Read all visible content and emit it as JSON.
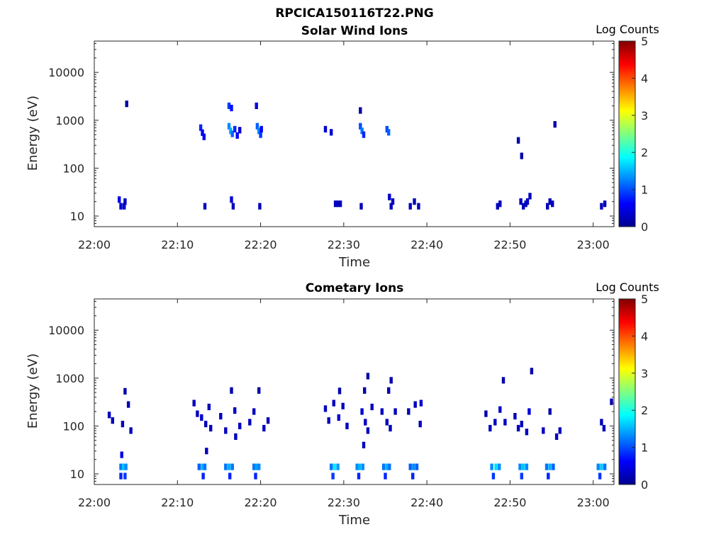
{
  "figure_title": "RPCICA150116T22.PNG",
  "colorbar": {
    "title": "Log Counts",
    "range": [
      0,
      5
    ],
    "ticks": [
      "0",
      "1",
      "2",
      "3",
      "4",
      "5"
    ]
  },
  "chart_data": [
    {
      "type": "heatmap",
      "title": "Solar Wind Ions",
      "xlabel": "Time",
      "ylabel": "Energy (eV)",
      "x_ticks": [
        "22:00",
        "22:10",
        "22:20",
        "22:30",
        "22:40",
        "22:50",
        "23:00"
      ],
      "x_tick_minutes": [
        0,
        10,
        20,
        30,
        40,
        50,
        60
      ],
      "xlim_minutes": [
        0,
        62.5
      ],
      "y_scale": "log",
      "ylim": [
        6,
        45000
      ],
      "y_ticks": [
        "10",
        "100",
        "1000",
        "10000"
      ],
      "y_tick_values": [
        10,
        100,
        1000,
        10000
      ],
      "cells": [
        [
          3.0,
          22,
          0.5
        ],
        [
          3.2,
          16,
          0.4
        ],
        [
          3.6,
          16,
          0.4
        ],
        [
          3.7,
          20,
          0.3
        ],
        [
          3.9,
          2200,
          0.2
        ],
        [
          12.8,
          700,
          0.8
        ],
        [
          13.0,
          550,
          0.6
        ],
        [
          13.2,
          450,
          0.5
        ],
        [
          13.3,
          16,
          0.3
        ],
        [
          16.2,
          2000,
          0.9
        ],
        [
          16.5,
          1800,
          0.7
        ],
        [
          16.2,
          750,
          1.3
        ],
        [
          16.4,
          600,
          1.5
        ],
        [
          16.6,
          520,
          1.1
        ],
        [
          16.9,
          650,
          0.8
        ],
        [
          17.2,
          480,
          0.6
        ],
        [
          17.5,
          620,
          0.4
        ],
        [
          16.5,
          22,
          0.4
        ],
        [
          16.7,
          16,
          0.3
        ],
        [
          19.5,
          2000,
          0.5
        ],
        [
          19.6,
          750,
          1.1
        ],
        [
          19.8,
          600,
          1.3
        ],
        [
          20.0,
          500,
          0.9
        ],
        [
          20.1,
          650,
          0.6
        ],
        [
          19.9,
          16,
          0.3
        ],
        [
          27.8,
          650,
          0.4
        ],
        [
          28.5,
          560,
          0.4
        ],
        [
          29.0,
          18,
          0.3
        ],
        [
          29.3,
          18,
          0.3
        ],
        [
          29.6,
          18,
          0.3
        ],
        [
          32.0,
          1600,
          0.2
        ],
        [
          32.0,
          750,
          1.0
        ],
        [
          32.2,
          600,
          1.2
        ],
        [
          32.4,
          500,
          0.8
        ],
        [
          32.1,
          16,
          0.3
        ],
        [
          35.2,
          650,
          1.0
        ],
        [
          35.4,
          560,
          1.1
        ],
        [
          35.5,
          25,
          0.4
        ],
        [
          35.7,
          16,
          0.3
        ],
        [
          35.9,
          20,
          0.3
        ],
        [
          38.0,
          16,
          0.3
        ],
        [
          38.5,
          20,
          0.3
        ],
        [
          39.0,
          16,
          0.3
        ],
        [
          48.5,
          16,
          0.3
        ],
        [
          48.8,
          18,
          0.3
        ],
        [
          51.0,
          380,
          0.2
        ],
        [
          51.4,
          180,
          0.2
        ],
        [
          51.3,
          20,
          0.3
        ],
        [
          51.6,
          16,
          0.3
        ],
        [
          51.9,
          18,
          0.3
        ],
        [
          52.1,
          20,
          0.3
        ],
        [
          52.4,
          26,
          0.3
        ],
        [
          54.5,
          16,
          0.3
        ],
        [
          54.8,
          20,
          0.3
        ],
        [
          55.1,
          18,
          0.3
        ],
        [
          55.4,
          820,
          0.2
        ],
        [
          61.0,
          16,
          0.3
        ],
        [
          61.4,
          18,
          0.3
        ]
      ]
    },
    {
      "type": "heatmap",
      "title": "Cometary Ions",
      "xlabel": "Time",
      "ylabel": "Energy (eV)",
      "x_ticks": [
        "22:00",
        "22:10",
        "22:20",
        "22:30",
        "22:40",
        "22:50",
        "23:00"
      ],
      "x_tick_minutes": [
        0,
        10,
        20,
        30,
        40,
        50,
        60
      ],
      "xlim_minutes": [
        0,
        62.5
      ],
      "y_scale": "log",
      "ylim": [
        6,
        45000
      ],
      "y_ticks": [
        "10",
        "100",
        "1000",
        "10000"
      ],
      "y_tick_values": [
        10,
        100,
        1000,
        10000
      ],
      "cells": [
        [
          3.2,
          14,
          1.2
        ],
        [
          3.5,
          14,
          1.6
        ],
        [
          3.8,
          14,
          1.3
        ],
        [
          3.2,
          9,
          0.8
        ],
        [
          3.7,
          9,
          0.9
        ],
        [
          3.3,
          25,
          0.5
        ],
        [
          1.8,
          170,
          0.3
        ],
        [
          2.2,
          130,
          0.3
        ],
        [
          3.4,
          110,
          0.3
        ],
        [
          4.1,
          280,
          0.3
        ],
        [
          4.4,
          80,
          0.3
        ],
        [
          3.7,
          530,
          0.2
        ],
        [
          12.6,
          14,
          1.1
        ],
        [
          13.0,
          14,
          1.5
        ],
        [
          13.3,
          14,
          1.2
        ],
        [
          13.1,
          9,
          0.8
        ],
        [
          12.0,
          300,
          0.3
        ],
        [
          12.4,
          180,
          0.3
        ],
        [
          12.9,
          150,
          0.4
        ],
        [
          13.4,
          110,
          0.3
        ],
        [
          13.8,
          250,
          0.3
        ],
        [
          14.0,
          90,
          0.3
        ],
        [
          13.5,
          30,
          0.3
        ],
        [
          15.8,
          14,
          1.2
        ],
        [
          16.2,
          14,
          1.5
        ],
        [
          16.6,
          14,
          1.2
        ],
        [
          16.3,
          9,
          0.8
        ],
        [
          15.2,
          160,
          0.3
        ],
        [
          15.8,
          80,
          0.3
        ],
        [
          16.5,
          550,
          0.2
        ],
        [
          16.9,
          210,
          0.3
        ],
        [
          17.5,
          100,
          0.3
        ],
        [
          17.0,
          60,
          0.3
        ],
        [
          19.2,
          14,
          1.2
        ],
        [
          19.5,
          14,
          1.4
        ],
        [
          19.8,
          14,
          1.3
        ],
        [
          19.4,
          9,
          0.8
        ],
        [
          18.7,
          120,
          0.3
        ],
        [
          19.2,
          200,
          0.3
        ],
        [
          20.4,
          90,
          0.3
        ],
        [
          20.9,
          130,
          0.3
        ],
        [
          19.8,
          550,
          0.2
        ],
        [
          28.5,
          14,
          1.2
        ],
        [
          28.9,
          14,
          1.8
        ],
        [
          29.3,
          14,
          1.4
        ],
        [
          28.7,
          9,
          0.9
        ],
        [
          27.8,
          230,
          0.3
        ],
        [
          28.2,
          130,
          0.3
        ],
        [
          28.8,
          300,
          0.3
        ],
        [
          29.4,
          150,
          0.4
        ],
        [
          29.9,
          260,
          0.3
        ],
        [
          30.4,
          100,
          0.3
        ],
        [
          29.5,
          540,
          0.2
        ],
        [
          31.6,
          14,
          1.3
        ],
        [
          31.9,
          14,
          1.5
        ],
        [
          32.3,
          14,
          1.3
        ],
        [
          31.8,
          9,
          0.8
        ],
        [
          32.2,
          200,
          0.4
        ],
        [
          32.6,
          120,
          0.3
        ],
        [
          32.9,
          80,
          0.3
        ],
        [
          32.4,
          40,
          0.3
        ],
        [
          32.5,
          550,
          0.2
        ],
        [
          32.9,
          1100,
          0.2
        ],
        [
          33.4,
          250,
          0.3
        ],
        [
          34.8,
          14,
          1.2
        ],
        [
          35.2,
          14,
          1.5
        ],
        [
          35.5,
          14,
          1.2
        ],
        [
          35.0,
          9,
          0.8
        ],
        [
          34.6,
          200,
          0.3
        ],
        [
          35.2,
          120,
          0.3
        ],
        [
          35.6,
          90,
          0.3
        ],
        [
          35.4,
          550,
          0.2
        ],
        [
          35.7,
          900,
          0.2
        ],
        [
          36.2,
          200,
          0.3
        ],
        [
          38.0,
          14,
          1.1
        ],
        [
          38.4,
          14,
          1.3
        ],
        [
          38.8,
          14,
          1.1
        ],
        [
          38.3,
          9,
          0.8
        ],
        [
          37.8,
          200,
          0.3
        ],
        [
          38.6,
          280,
          0.3
        ],
        [
          39.2,
          110,
          0.3
        ],
        [
          39.3,
          300,
          0.4
        ],
        [
          47.8,
          14,
          1.3
        ],
        [
          48.3,
          14,
          1.7
        ],
        [
          48.7,
          14,
          1.3
        ],
        [
          48.0,
          9,
          0.9
        ],
        [
          47.1,
          180,
          0.2
        ],
        [
          47.6,
          90,
          0.3
        ],
        [
          48.2,
          120,
          0.3
        ],
        [
          48.8,
          220,
          0.4
        ],
        [
          49.2,
          900,
          0.2
        ],
        [
          49.4,
          120,
          0.3
        ],
        [
          51.2,
          14,
          1.3
        ],
        [
          51.6,
          14,
          1.6
        ],
        [
          52.0,
          14,
          1.3
        ],
        [
          51.4,
          9,
          0.9
        ],
        [
          50.6,
          160,
          0.3
        ],
        [
          51.0,
          90,
          0.3
        ],
        [
          51.4,
          110,
          0.3
        ],
        [
          52.0,
          75,
          0.3
        ],
        [
          52.3,
          200,
          0.4
        ],
        [
          52.6,
          1400,
          0.2
        ],
        [
          54.4,
          14,
          1.2
        ],
        [
          54.8,
          14,
          1.5
        ],
        [
          55.2,
          14,
          1.1
        ],
        [
          54.6,
          9,
          0.8
        ],
        [
          54.0,
          80,
          0.3
        ],
        [
          54.8,
          200,
          0.2
        ],
        [
          55.6,
          60,
          0.3
        ],
        [
          56.0,
          80,
          0.3
        ],
        [
          60.6,
          14,
          1.3
        ],
        [
          61.0,
          14,
          1.6
        ],
        [
          61.4,
          14,
          1.2
        ],
        [
          60.8,
          9,
          0.9
        ],
        [
          61.0,
          120,
          0.3
        ],
        [
          61.3,
          90,
          0.3
        ],
        [
          62.2,
          320,
          0.3
        ]
      ]
    }
  ]
}
